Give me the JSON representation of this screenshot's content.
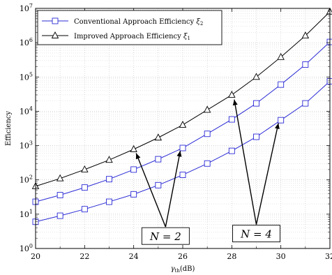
{
  "chart_data": {
    "type": "line",
    "xlabel": "γth(dB)",
    "ylabel": "Efficiency",
    "x_ticks": [
      "20",
      "22",
      "24",
      "26",
      "28",
      "30",
      "32"
    ],
    "y_ticks": [
      "10^0",
      "10^1",
      "10^2",
      "10^3",
      "10^4",
      "10^5",
      "10^6",
      "10^7"
    ],
    "xlim": [
      20,
      32
    ],
    "ylim": [
      1,
      10000000
    ],
    "y_scale": "log",
    "grid": true,
    "grid_style": "dotted",
    "legend_position": "top-left",
    "x": [
      20,
      21,
      22,
      23,
      24,
      25,
      26,
      27,
      28,
      29,
      30,
      31,
      32
    ],
    "series": [
      {
        "name": "Conventional Approach Efficiency ξ2",
        "group": "N = 4",
        "marker": "square",
        "color": "#2b2bd6",
        "values": [
          6,
          9,
          14,
          23,
          38,
          70,
          140,
          300,
          700,
          1800,
          5500,
          17000,
          75000
        ]
      },
      {
        "name": "Conventional Approach Efficiency ξ2",
        "group": "N = 2",
        "marker": "square",
        "color": "#2b2bd6",
        "values": [
          23,
          36,
          60,
          105,
          200,
          400,
          850,
          2200,
          5800,
          17000,
          60000,
          230000,
          1050000
        ]
      },
      {
        "name": "Improved Approach Efficiency ξ1",
        "group": "N = 2",
        "marker": "triangle",
        "color": "#000000",
        "values": [
          65,
          110,
          200,
          380,
          780,
          1700,
          4000,
          11000,
          30000,
          100000,
          380000,
          1600000,
          8000000
        ]
      }
    ],
    "legend": [
      {
        "label": "Conventional Approach Efficiency ξ2",
        "marker": "square",
        "color": "#2b2bd6"
      },
      {
        "label": "Improved Approach Efficiency ξ1",
        "marker": "triangle",
        "color": "#000000"
      }
    ],
    "annotations": [
      {
        "text": "N = 2",
        "box_x": 25.3,
        "box_y": 2.2,
        "targets": [
          [
            24.1,
            600
          ],
          [
            25.9,
            700
          ]
        ]
      },
      {
        "text": "N = 4",
        "box_x": 29.0,
        "box_y": 2.6,
        "targets": [
          [
            28.1,
            22000
          ],
          [
            29.9,
            4500
          ]
        ]
      }
    ]
  }
}
